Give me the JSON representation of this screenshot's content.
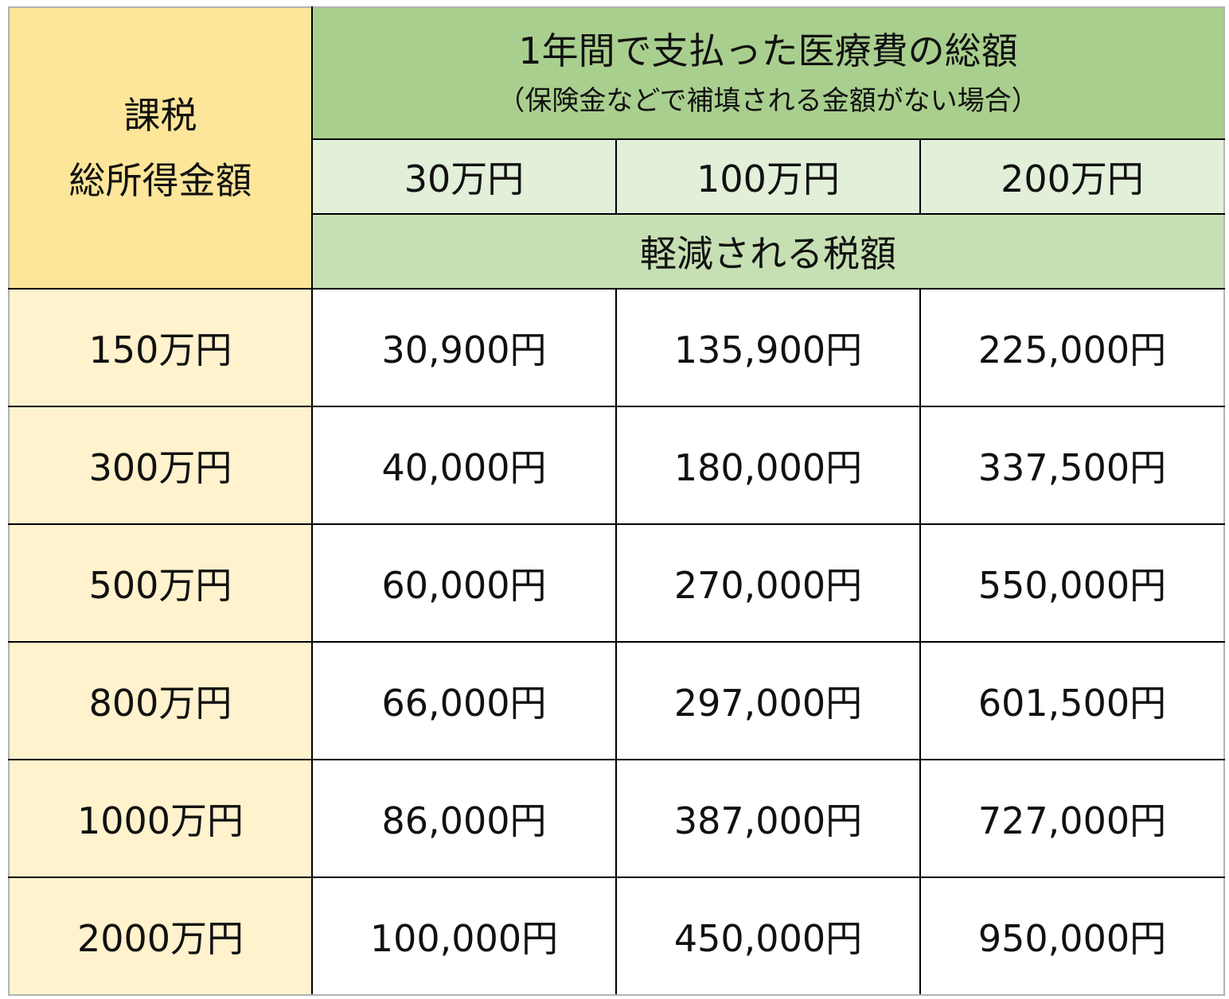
{
  "header": {
    "income_label_line1": "課税",
    "income_label_line2": "総所得金額",
    "title_main": "1年間で支払った医療費の総額",
    "title_sub": "（保険金などで補填される金額がない場合）",
    "amounts": [
      "30万円",
      "100万円",
      "200万円"
    ],
    "reduced_label": "軽減される税額"
  },
  "rows": [
    {
      "income": "150万円",
      "values": [
        "30,900円",
        "135,900円",
        "225,000円"
      ]
    },
    {
      "income": "300万円",
      "values": [
        "40,000円",
        "180,000円",
        "337,500円"
      ]
    },
    {
      "income": "500万円",
      "values": [
        "60,000円",
        "270,000円",
        "550,000円"
      ]
    },
    {
      "income": "800万円",
      "values": [
        "66,000円",
        "297,000円",
        "601,500円"
      ]
    },
    {
      "income": "1000万円",
      "values": [
        "86,000円",
        "387,000円",
        "727,000円"
      ]
    },
    {
      "income": "2000万円",
      "values": [
        "100,000円",
        "450,000円",
        "950,000円"
      ]
    }
  ],
  "colors": {
    "income_header_bg": "#fde599",
    "row_label_bg": "#fff2cc",
    "title_bg": "#a9cf8e",
    "amount_bg": "#e2efd9",
    "reduced_bg": "#c6e0b3"
  }
}
